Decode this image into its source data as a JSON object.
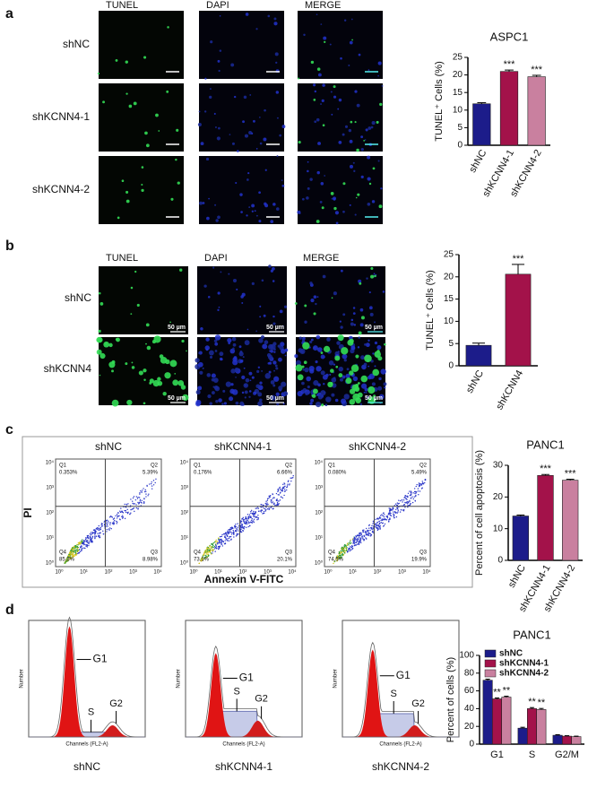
{
  "chart_data": [
    {
      "type": "bar",
      "title": "ASPC1",
      "y_label": "TUNEL⁺ Cells (%)",
      "categories": [
        "shNC",
        "shKCNN4-1",
        "shKCNN4-2"
      ],
      "values": [
        11.8,
        21,
        19.5
      ],
      "errors": [
        0.3,
        0.4,
        0.4
      ],
      "colors": [
        "#1c1c8a",
        "#a3124a",
        "#c9809f"
      ],
      "significance": [
        null,
        "***",
        "***"
      ],
      "ylim": [
        0,
        25
      ],
      "yticks": [
        0,
        5,
        10,
        15,
        20,
        25
      ]
    },
    {
      "type": "bar",
      "y_label": "TUNEL⁺ Cells (%)",
      "categories": [
        "shNC",
        "shKCNN4"
      ],
      "values": [
        4.6,
        20.6
      ],
      "errors": [
        0.5,
        2.2
      ],
      "colors": [
        "#1c1c8a",
        "#a3124a"
      ],
      "significance": [
        null,
        "***"
      ],
      "ylim": [
        0,
        25
      ],
      "yticks": [
        0,
        5,
        10,
        15,
        20,
        25
      ]
    },
    {
      "type": "bar",
      "title": "PANC1",
      "y_label": "Percent of cell apoptosis (%)",
      "categories": [
        "shNC",
        "shKCNN4-1",
        "shKCNN4-2"
      ],
      "values": [
        14,
        26.8,
        25.3
      ],
      "errors": [
        0.3,
        0.3,
        0.3
      ],
      "colors": [
        "#1c1c8a",
        "#a3124a",
        "#c9809f"
      ],
      "significance": [
        null,
        "***",
        "***"
      ],
      "ylim": [
        0,
        30
      ],
      "yticks": [
        0,
        10,
        20,
        30
      ]
    },
    {
      "type": "grouped_bar",
      "title": "PANC1",
      "y_label": "Percent of cells (%)",
      "categories": [
        "G1",
        "S",
        "G2/M"
      ],
      "legend": "upper right",
      "series": [
        {
          "name": "shNC",
          "color": "#1c1c8a",
          "values": [
            72,
            18,
            10
          ],
          "errors": [
            1.2,
            1,
            0.6
          ],
          "significance": [
            null,
            null,
            null
          ]
        },
        {
          "name": "shKCNN4-1",
          "color": "#a3124a",
          "values": [
            51,
            40,
            9
          ],
          "errors": [
            1,
            1.2,
            0.5
          ],
          "significance": [
            "**",
            "**",
            null
          ]
        },
        {
          "name": "shKCNN4-2",
          "color": "#c9809f",
          "values": [
            53,
            39,
            8.5
          ],
          "errors": [
            1,
            1.2,
            0.5
          ],
          "significance": [
            "**",
            "**",
            null
          ]
        }
      ],
      "ylim": [
        0,
        100
      ],
      "yticks": [
        0,
        20,
        40,
        60,
        80,
        100
      ]
    }
  ],
  "panel_a": {
    "label": "a",
    "columns": [
      "TUNEL",
      "DAPI",
      "MERGE"
    ],
    "rows": [
      "shNC",
      "shKCNN4-1",
      "shKCNN4-2"
    ]
  },
  "panel_b": {
    "label": "b",
    "columns": [
      "TUNEL",
      "DAPI",
      "MERGE"
    ],
    "rows": [
      "shNC",
      "shKCNN4"
    ],
    "scale_bar": "50 µm"
  },
  "panel_c": {
    "label": "c",
    "y_label": "PI",
    "x_label": "Annexin V-FITC",
    "ticks": [
      "10⁰",
      "10¹",
      "10²",
      "10³",
      "10⁴"
    ],
    "plots": [
      {
        "title": "shNC",
        "quadrants": [
          [
            "Q1",
            "0.353%"
          ],
          [
            "Q2",
            "5.39%"
          ],
          [
            "Q3",
            "8.98%"
          ],
          [
            "Q4",
            "85.3%"
          ]
        ]
      },
      {
        "title": "shKCNN4-1",
        "quadrants": [
          [
            "Q1",
            "0.176%"
          ],
          [
            "Q2",
            "6.66%"
          ],
          [
            "Q3",
            "20.1%"
          ],
          [
            "Q4",
            "73.1%"
          ]
        ]
      },
      {
        "title": "shKCNN4-2",
        "quadrants": [
          [
            "Q1",
            "0.080%"
          ],
          [
            "Q2",
            "5.49%"
          ],
          [
            "Q3",
            "19.9%"
          ],
          [
            "Q4",
            "74.5%"
          ]
        ]
      }
    ]
  },
  "panel_d": {
    "label": "d",
    "x_label": "Channels (FL2-A)",
    "y_label": "Number",
    "peaks": [
      "G1",
      "S",
      "G2"
    ],
    "plots": [
      {
        "title": "shNC"
      },
      {
        "title": "shKCNN4-1"
      },
      {
        "title": "shKCNN4-2"
      }
    ]
  }
}
